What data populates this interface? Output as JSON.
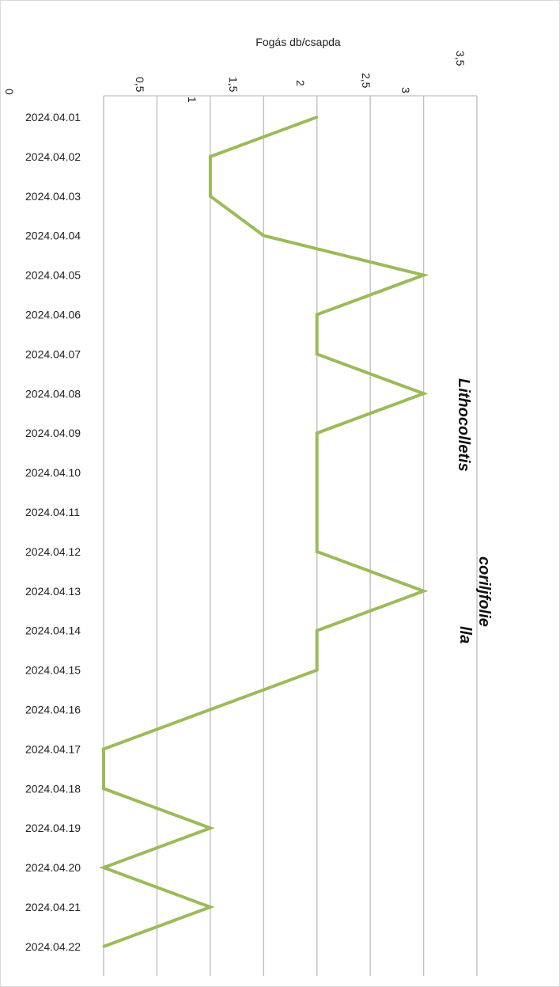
{
  "chart_data": {
    "type": "line",
    "orientation": "rotated-90",
    "ylabel": "Fogás db/csapda",
    "ylim": [
      0,
      3.5
    ],
    "y_ticks": [
      "0",
      "0,5",
      "1",
      "1,5",
      "2",
      "2,5",
      "3",
      "3,5"
    ],
    "grid": true,
    "categories": [
      "2024.04.01",
      "2024.04.02",
      "2024.04.03",
      "2024.04.04",
      "2024.04.05",
      "2024.04.06",
      "2024.04.07",
      "2024.04.08",
      "2024.04.09",
      "2024.04.10",
      "2024.04.11",
      "2024.04.12",
      "2024.04.13",
      "2024.04.14",
      "2024.04.15",
      "2024.04.16",
      "2024.04.17",
      "2024.04.18",
      "2024.04.19",
      "2024.04.20",
      "2024.04.21",
      "2024.04.22"
    ],
    "series": [
      {
        "title_lines": [
          "Lithocolletis",
          "coriljfolie",
          "lla"
        ],
        "color": "#9bbb59",
        "values": [
          2,
          1,
          1,
          1.5,
          3,
          2,
          2,
          3,
          2,
          2,
          2,
          2,
          3,
          2,
          2,
          1,
          0,
          0,
          1,
          0,
          1,
          0
        ]
      }
    ]
  }
}
